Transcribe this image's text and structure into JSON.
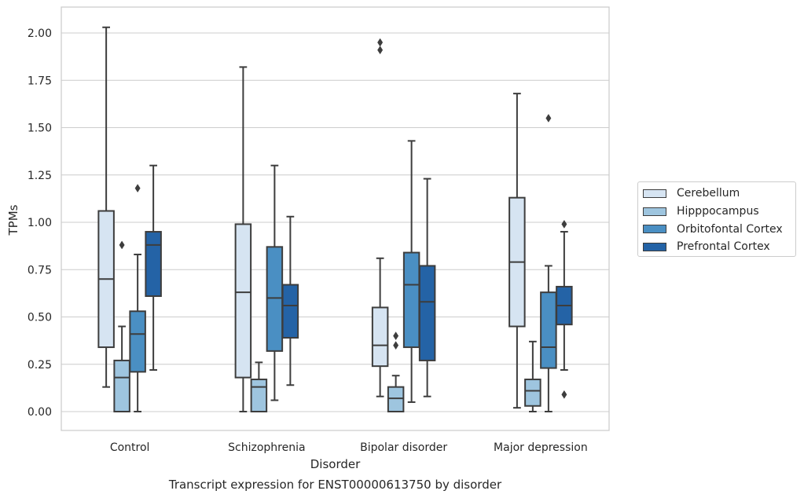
{
  "chart_data": {
    "type": "box",
    "title": "Transcript expression for ENST00000613750 by disorder",
    "xlabel": "Disorder",
    "ylabel": "TPMs",
    "ylim": [
      -0.1,
      2.14
    ],
    "yticks": [
      "0.00",
      "0.25",
      "0.50",
      "0.75",
      "1.00",
      "1.25",
      "1.50",
      "1.75",
      "2.00"
    ],
    "categories": [
      "Control",
      "Schizophrenia",
      "Bipolar disorder",
      "Major depression"
    ],
    "grid": "horizontal",
    "legend_position": "right",
    "series": [
      {
        "name": "Cerebellum",
        "color": "#d6e4f2",
        "boxes": [
          {
            "whislo": 0.13,
            "q1": 0.34,
            "med": 0.7,
            "q3": 1.06,
            "whishi": 2.03,
            "fliers": []
          },
          {
            "whislo": 0.0,
            "q1": 0.18,
            "med": 0.63,
            "q3": 0.99,
            "whishi": 1.82,
            "fliers": []
          },
          {
            "whislo": 0.08,
            "q1": 0.24,
            "med": 0.35,
            "q3": 0.55,
            "whishi": 0.81,
            "fliers": [
              1.91,
              1.95
            ]
          },
          {
            "whislo": 0.02,
            "q1": 0.45,
            "med": 0.79,
            "q3": 1.13,
            "whishi": 1.68,
            "fliers": []
          }
        ]
      },
      {
        "name": "Hipppocampus",
        "color": "#9ec5df",
        "boxes": [
          {
            "whislo": 0.0,
            "q1": 0.0,
            "med": 0.18,
            "q3": 0.27,
            "whishi": 0.45,
            "fliers": [
              0.88
            ]
          },
          {
            "whislo": 0.0,
            "q1": 0.0,
            "med": 0.13,
            "q3": 0.17,
            "whishi": 0.26,
            "fliers": []
          },
          {
            "whislo": 0.0,
            "q1": 0.0,
            "med": 0.07,
            "q3": 0.13,
            "whishi": 0.19,
            "fliers": [
              0.35,
              0.4
            ]
          },
          {
            "whislo": 0.0,
            "q1": 0.03,
            "med": 0.11,
            "q3": 0.17,
            "whishi": 0.37,
            "fliers": []
          }
        ]
      },
      {
        "name": "Orbitofontal Cortex",
        "color": "#4a8fc3",
        "boxes": [
          {
            "whislo": 0.0,
            "q1": 0.21,
            "med": 0.41,
            "q3": 0.53,
            "whishi": 0.83,
            "fliers": [
              1.18
            ]
          },
          {
            "whislo": 0.06,
            "q1": 0.32,
            "med": 0.6,
            "q3": 0.87,
            "whishi": 1.3,
            "fliers": []
          },
          {
            "whislo": 0.05,
            "q1": 0.34,
            "med": 0.67,
            "q3": 0.84,
            "whishi": 1.43,
            "fliers": []
          },
          {
            "whislo": 0.0,
            "q1": 0.23,
            "med": 0.34,
            "q3": 0.63,
            "whishi": 0.77,
            "fliers": [
              1.55
            ]
          }
        ]
      },
      {
        "name": "Prefrontal Cortex",
        "color": "#2463a6",
        "boxes": [
          {
            "whislo": 0.22,
            "q1": 0.61,
            "med": 0.88,
            "q3": 0.95,
            "whishi": 1.3,
            "fliers": []
          },
          {
            "whislo": 0.14,
            "q1": 0.39,
            "med": 0.56,
            "q3": 0.67,
            "whishi": 1.03,
            "fliers": []
          },
          {
            "whislo": 0.08,
            "q1": 0.27,
            "med": 0.58,
            "q3": 0.77,
            "whishi": 1.23,
            "fliers": []
          },
          {
            "whislo": 0.22,
            "q1": 0.46,
            "med": 0.56,
            "q3": 0.66,
            "whishi": 0.95,
            "fliers": [
              0.09,
              0.99
            ]
          }
        ]
      }
    ]
  }
}
